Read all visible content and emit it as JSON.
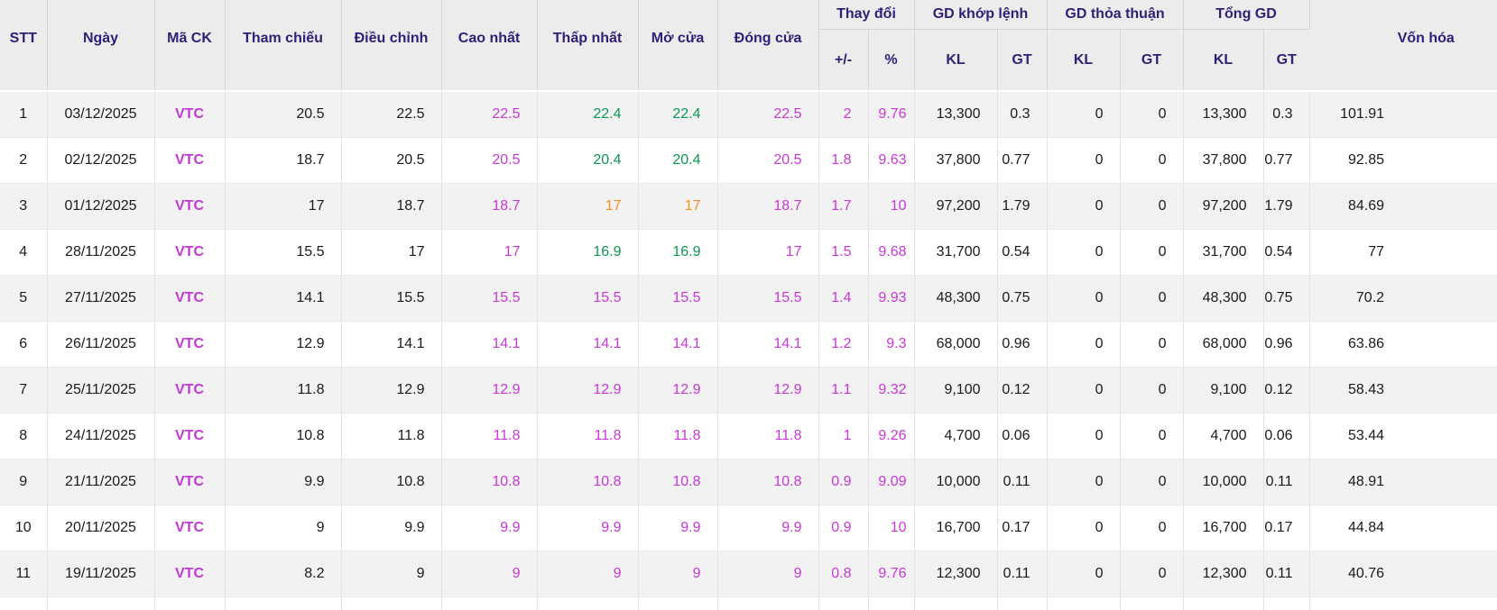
{
  "palette": {
    "header_text": "#2e1f7a",
    "symbol": "#c437d4",
    "ceiling": "#c937d8",
    "up": "#0a9850",
    "reference": "#f6921e",
    "body_text": "#1a1a1a",
    "header_bg": "#ececec",
    "row_alt_bg": "#f2f2f2"
  },
  "table": {
    "headers": {
      "stt": "STT",
      "date": "Ngày",
      "symbol": "Mã CK",
      "ref": "Tham chiếu",
      "adjusted": "Điều chỉnh",
      "high": "Cao nhất",
      "low": "Thấp nhất",
      "open": "Mở cửa",
      "close": "Đóng cửa",
      "market_cap": "Vốn hóa",
      "groups": [
        {
          "label": "Thay đổi",
          "children": [
            "+/-",
            "%"
          ]
        },
        {
          "label": "GD khớp lệnh",
          "children": [
            "KL",
            "GT"
          ]
        },
        {
          "label": "GD thỏa thuận",
          "children": [
            "KL",
            "GT"
          ]
        },
        {
          "label": "Tổng GD",
          "children": [
            "KL",
            "GT"
          ]
        }
      ]
    },
    "rows": [
      {
        "stt": "1",
        "date": "03/12/2025",
        "symbol": "VTC",
        "ref": "20.5",
        "adj": "22.5",
        "high": {
          "v": "22.5",
          "tone": "ceiling"
        },
        "low": {
          "v": "22.4",
          "tone": "up"
        },
        "open": {
          "v": "22.4",
          "tone": "up"
        },
        "close": {
          "v": "22.5",
          "tone": "ceiling"
        },
        "chg": {
          "v": "2",
          "tone": "ceiling"
        },
        "chg_pct": {
          "v": "9.76",
          "tone": "ceiling"
        },
        "kl_matched": "13,300",
        "gt_matched": "0.3",
        "kl_putthrough": "0",
        "gt_putthrough": "0",
        "kl_total": "13,300",
        "gt_total": "0.3",
        "market_cap": "101.91"
      },
      {
        "stt": "2",
        "date": "02/12/2025",
        "symbol": "VTC",
        "ref": "18.7",
        "adj": "20.5",
        "high": {
          "v": "20.5",
          "tone": "ceiling"
        },
        "low": {
          "v": "20.4",
          "tone": "up"
        },
        "open": {
          "v": "20.4",
          "tone": "up"
        },
        "close": {
          "v": "20.5",
          "tone": "ceiling"
        },
        "chg": {
          "v": "1.8",
          "tone": "ceiling"
        },
        "chg_pct": {
          "v": "9.63",
          "tone": "ceiling"
        },
        "kl_matched": "37,800",
        "gt_matched": "0.77",
        "kl_putthrough": "0",
        "gt_putthrough": "0",
        "kl_total": "37,800",
        "gt_total": "0.77",
        "market_cap": "92.85"
      },
      {
        "stt": "3",
        "date": "01/12/2025",
        "symbol": "VTC",
        "ref": "17",
        "adj": "18.7",
        "high": {
          "v": "18.7",
          "tone": "ceiling"
        },
        "low": {
          "v": "17",
          "tone": "reference"
        },
        "open": {
          "v": "17",
          "tone": "reference"
        },
        "close": {
          "v": "18.7",
          "tone": "ceiling"
        },
        "chg": {
          "v": "1.7",
          "tone": "ceiling"
        },
        "chg_pct": {
          "v": "10",
          "tone": "ceiling"
        },
        "kl_matched": "97,200",
        "gt_matched": "1.79",
        "kl_putthrough": "0",
        "gt_putthrough": "0",
        "kl_total": "97,200",
        "gt_total": "1.79",
        "market_cap": "84.69"
      },
      {
        "stt": "4",
        "date": "28/11/2025",
        "symbol": "VTC",
        "ref": "15.5",
        "adj": "17",
        "high": {
          "v": "17",
          "tone": "ceiling"
        },
        "low": {
          "v": "16.9",
          "tone": "up"
        },
        "open": {
          "v": "16.9",
          "tone": "up"
        },
        "close": {
          "v": "17",
          "tone": "ceiling"
        },
        "chg": {
          "v": "1.5",
          "tone": "ceiling"
        },
        "chg_pct": {
          "v": "9.68",
          "tone": "ceiling"
        },
        "kl_matched": "31,700",
        "gt_matched": "0.54",
        "kl_putthrough": "0",
        "gt_putthrough": "0",
        "kl_total": "31,700",
        "gt_total": "0.54",
        "market_cap": "77"
      },
      {
        "stt": "5",
        "date": "27/11/2025",
        "symbol": "VTC",
        "ref": "14.1",
        "adj": "15.5",
        "high": {
          "v": "15.5",
          "tone": "ceiling"
        },
        "low": {
          "v": "15.5",
          "tone": "ceiling"
        },
        "open": {
          "v": "15.5",
          "tone": "ceiling"
        },
        "close": {
          "v": "15.5",
          "tone": "ceiling"
        },
        "chg": {
          "v": "1.4",
          "tone": "ceiling"
        },
        "chg_pct": {
          "v": "9.93",
          "tone": "ceiling"
        },
        "kl_matched": "48,300",
        "gt_matched": "0.75",
        "kl_putthrough": "0",
        "gt_putthrough": "0",
        "kl_total": "48,300",
        "gt_total": "0.75",
        "market_cap": "70.2"
      },
      {
        "stt": "6",
        "date": "26/11/2025",
        "symbol": "VTC",
        "ref": "12.9",
        "adj": "14.1",
        "high": {
          "v": "14.1",
          "tone": "ceiling"
        },
        "low": {
          "v": "14.1",
          "tone": "ceiling"
        },
        "open": {
          "v": "14.1",
          "tone": "ceiling"
        },
        "close": {
          "v": "14.1",
          "tone": "ceiling"
        },
        "chg": {
          "v": "1.2",
          "tone": "ceiling"
        },
        "chg_pct": {
          "v": "9.3",
          "tone": "ceiling"
        },
        "kl_matched": "68,000",
        "gt_matched": "0.96",
        "kl_putthrough": "0",
        "gt_putthrough": "0",
        "kl_total": "68,000",
        "gt_total": "0.96",
        "market_cap": "63.86"
      },
      {
        "stt": "7",
        "date": "25/11/2025",
        "symbol": "VTC",
        "ref": "11.8",
        "adj": "12.9",
        "high": {
          "v": "12.9",
          "tone": "ceiling"
        },
        "low": {
          "v": "12.9",
          "tone": "ceiling"
        },
        "open": {
          "v": "12.9",
          "tone": "ceiling"
        },
        "close": {
          "v": "12.9",
          "tone": "ceiling"
        },
        "chg": {
          "v": "1.1",
          "tone": "ceiling"
        },
        "chg_pct": {
          "v": "9.32",
          "tone": "ceiling"
        },
        "kl_matched": "9,100",
        "gt_matched": "0.12",
        "kl_putthrough": "0",
        "gt_putthrough": "0",
        "kl_total": "9,100",
        "gt_total": "0.12",
        "market_cap": "58.43"
      },
      {
        "stt": "8",
        "date": "24/11/2025",
        "symbol": "VTC",
        "ref": "10.8",
        "adj": "11.8",
        "high": {
          "v": "11.8",
          "tone": "ceiling"
        },
        "low": {
          "v": "11.8",
          "tone": "ceiling"
        },
        "open": {
          "v": "11.8",
          "tone": "ceiling"
        },
        "close": {
          "v": "11.8",
          "tone": "ceiling"
        },
        "chg": {
          "v": "1",
          "tone": "ceiling"
        },
        "chg_pct": {
          "v": "9.26",
          "tone": "ceiling"
        },
        "kl_matched": "4,700",
        "gt_matched": "0.06",
        "kl_putthrough": "0",
        "gt_putthrough": "0",
        "kl_total": "4,700",
        "gt_total": "0.06",
        "market_cap": "53.44"
      },
      {
        "stt": "9",
        "date": "21/11/2025",
        "symbol": "VTC",
        "ref": "9.9",
        "adj": "10.8",
        "high": {
          "v": "10.8",
          "tone": "ceiling"
        },
        "low": {
          "v": "10.8",
          "tone": "ceiling"
        },
        "open": {
          "v": "10.8",
          "tone": "ceiling"
        },
        "close": {
          "v": "10.8",
          "tone": "ceiling"
        },
        "chg": {
          "v": "0.9",
          "tone": "ceiling"
        },
        "chg_pct": {
          "v": "9.09",
          "tone": "ceiling"
        },
        "kl_matched": "10,000",
        "gt_matched": "0.11",
        "kl_putthrough": "0",
        "gt_putthrough": "0",
        "kl_total": "10,000",
        "gt_total": "0.11",
        "market_cap": "48.91"
      },
      {
        "stt": "10",
        "date": "20/11/2025",
        "symbol": "VTC",
        "ref": "9",
        "adj": "9.9",
        "high": {
          "v": "9.9",
          "tone": "ceiling"
        },
        "low": {
          "v": "9.9",
          "tone": "ceiling"
        },
        "open": {
          "v": "9.9",
          "tone": "ceiling"
        },
        "close": {
          "v": "9.9",
          "tone": "ceiling"
        },
        "chg": {
          "v": "0.9",
          "tone": "ceiling"
        },
        "chg_pct": {
          "v": "10",
          "tone": "ceiling"
        },
        "kl_matched": "16,700",
        "gt_matched": "0.17",
        "kl_putthrough": "0",
        "gt_putthrough": "0",
        "kl_total": "16,700",
        "gt_total": "0.17",
        "market_cap": "44.84"
      },
      {
        "stt": "11",
        "date": "19/11/2025",
        "symbol": "VTC",
        "ref": "8.2",
        "adj": "9",
        "high": {
          "v": "9",
          "tone": "ceiling"
        },
        "low": {
          "v": "9",
          "tone": "ceiling"
        },
        "open": {
          "v": "9",
          "tone": "ceiling"
        },
        "close": {
          "v": "9",
          "tone": "ceiling"
        },
        "chg": {
          "v": "0.8",
          "tone": "ceiling"
        },
        "chg_pct": {
          "v": "9.76",
          "tone": "ceiling"
        },
        "kl_matched": "12,300",
        "gt_matched": "0.11",
        "kl_putthrough": "0",
        "gt_putthrough": "0",
        "kl_total": "12,300",
        "gt_total": "0.11",
        "market_cap": "40.76"
      }
    ]
  }
}
